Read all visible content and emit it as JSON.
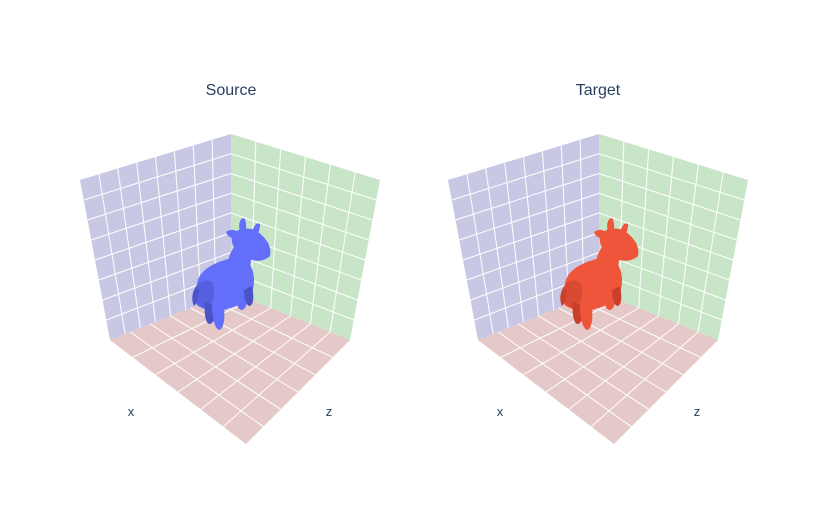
{
  "chart_data": [
    {
      "type": "mesh3d",
      "title": "Source",
      "xlabel": "x",
      "ylabel": "",
      "zlabel": "z",
      "grid": true,
      "mesh_color": "#636efa",
      "mesh_shadow": "#4a53c8",
      "panel_colors": {
        "left_wall": "#c8c8e5",
        "right_wall": "#c8e5c8",
        "floor": "#e5c8c8"
      }
    },
    {
      "type": "mesh3d",
      "title": "Target",
      "xlabel": "x",
      "ylabel": "",
      "zlabel": "z",
      "grid": true,
      "mesh_color": "#ef553b",
      "mesh_shadow": "#c8402a",
      "panel_colors": {
        "left_wall": "#c8c8e5",
        "right_wall": "#c8e5c8",
        "floor": "#e5c8c8"
      }
    }
  ]
}
